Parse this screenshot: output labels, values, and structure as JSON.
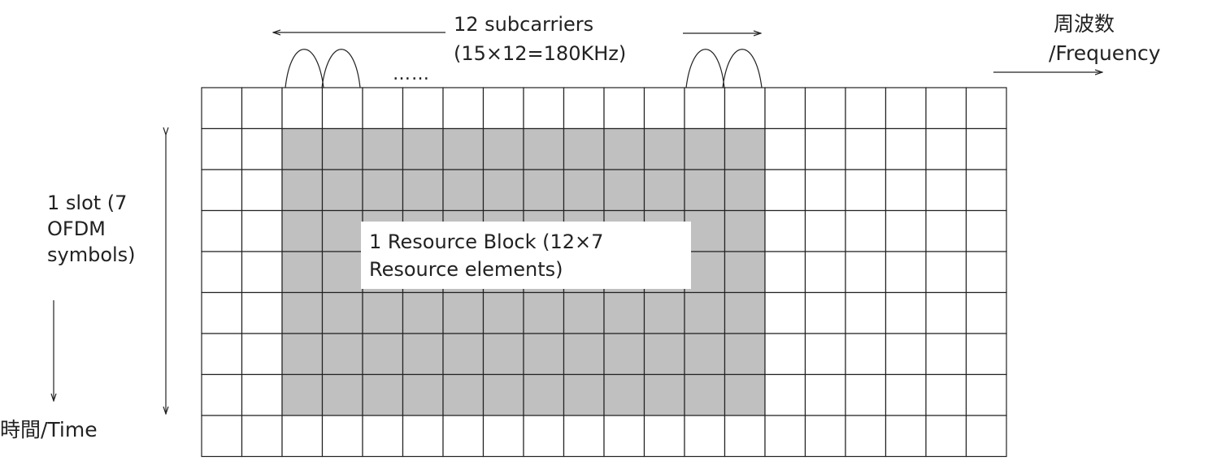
{
  "colors": {
    "grid_line": "#222222",
    "resource_block_fill": "#c0c0c0",
    "background": "#ffffff"
  },
  "grid": {
    "columns": 20,
    "rows": 9,
    "highlight_cols": [
      2,
      13
    ],
    "highlight_rows": [
      1,
      7
    ]
  },
  "subcarrier_label": {
    "line1": "12 subcarriers",
    "line2": "(15×12=180KHz)"
  },
  "ellipsis": "……",
  "frequency_label": {
    "line1": "周波数",
    "line2": "/Frequency"
  },
  "slot_label": {
    "line1": "1 slot (7",
    "line2": "OFDM",
    "line3": "symbols)"
  },
  "time_label": "時間/Time",
  "resource_block_label": {
    "line1": "1 Resource Block (12×7",
    "line2": "Resource elements)"
  }
}
